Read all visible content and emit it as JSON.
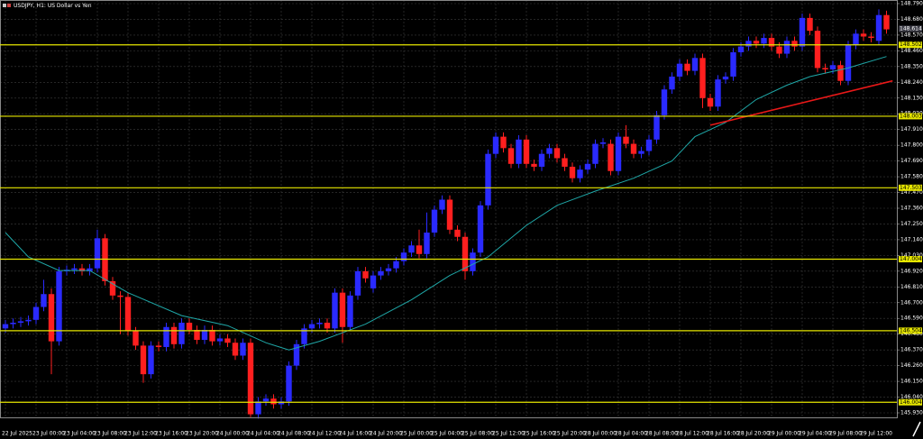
{
  "chart_data": {
    "type": "candlestick",
    "title": "USDJPY, H1: US Dollar vs Yen",
    "categories": [
      "22 Jul 2025",
      null,
      null,
      null,
      "23 Jul 00:00",
      null,
      null,
      null,
      "23 Jul 04:00",
      null,
      null,
      null,
      "23 Jul 08:00",
      null,
      null,
      null,
      "23 Jul 12:00",
      null,
      null,
      null,
      "23 Jul 16:00",
      null,
      null,
      null,
      "23 Jul 20:00",
      null,
      null,
      null,
      "24 Jul 00:00",
      null,
      null,
      null,
      "24 Jul 04:00",
      null,
      null,
      null,
      "24 Jul 08:00",
      null,
      null,
      null,
      "24 Jul 12:00",
      null,
      null,
      null,
      "24 Jul 16:00",
      null,
      null,
      null,
      "24 Jul 20:00",
      null,
      null,
      null,
      "25 Jul 00:00",
      null,
      null,
      null,
      "25 Jul 04:00",
      null,
      null,
      null,
      "25 Jul 08:00",
      null,
      null,
      null,
      "25 Jul 12:00",
      null,
      null,
      null,
      "25 Jul 16:00",
      null,
      null,
      null,
      "25 Jul 20:00",
      null,
      null,
      null,
      "28 Jul 00:00",
      null,
      null,
      null,
      "28 Jul 04:00",
      null,
      null,
      null,
      "28 Jul 08:00",
      null,
      null,
      null,
      "28 Jul 12:00",
      null,
      null,
      null,
      "28 Jul 16:00",
      null,
      null,
      null,
      "28 Jul 20:00",
      null,
      null,
      null,
      "29 Jul 00:00",
      null,
      null,
      null,
      "29 Jul 04:00",
      null,
      null,
      null,
      "29 Jul 08:00",
      null,
      null,
      null,
      "29 Jul 12:00",
      null,
      null,
      null
    ],
    "open": [
      146.52,
      146.55,
      146.56,
      146.57,
      146.58,
      146.67,
      146.76,
      146.43,
      146.92,
      146.93,
      146.94,
      146.92,
      146.94,
      147.15,
      146.85,
      146.75,
      146.74,
      146.5,
      146.4,
      146.2,
      146.4,
      146.39,
      146.53,
      146.41,
      146.56,
      146.51,
      146.44,
      146.51,
      146.43,
      146.45,
      146.42,
      146.33,
      146.42,
      145.92,
      146.01,
      146.03,
      145.99,
      146.01,
      146.26,
      146.41,
      146.52,
      146.55,
      146.56,
      146.52,
      146.77,
      146.53,
      146.75,
      146.92,
      146.8,
      146.89,
      146.92,
      146.94,
      146.99,
      147.05,
      147.1,
      147.04,
      147.19,
      147.35,
      147.42,
      147.21,
      147.16,
      146.92,
      147.05,
      147.38,
      147.74,
      147.86,
      147.78,
      147.67,
      147.84,
      147.67,
      147.65,
      147.74,
      147.78,
      147.71,
      147.65,
      147.57,
      147.63,
      147.67,
      147.81,
      147.81,
      147.62,
      147.86,
      147.81,
      147.74,
      147.76,
      147.84,
      148.01,
      148.19,
      148.28,
      148.37,
      148.32,
      148.41,
      148.13,
      148.07,
      148.26,
      148.28,
      148.45,
      148.49,
      148.53,
      148.51,
      148.55,
      148.49,
      148.44,
      148.53,
      148.49,
      148.69,
      148.6,
      148.34,
      148.33,
      148.36,
      148.25,
      148.5,
      148.58,
      148.56,
      148.53,
      148.71
    ],
    "high": [
      146.58,
      146.59,
      146.6,
      146.61,
      146.7,
      146.86,
      146.8,
      146.95,
      146.96,
      146.97,
      146.97,
      146.97,
      147.21,
      147.18,
      146.88,
      146.78,
      146.77,
      146.53,
      146.43,
      146.43,
      146.43,
      146.56,
      146.56,
      146.59,
      146.59,
      146.54,
      146.54,
      146.54,
      146.48,
      146.48,
      146.45,
      146.45,
      146.45,
      146.04,
      146.06,
      146.06,
      146.04,
      146.29,
      146.44,
      146.55,
      146.58,
      146.59,
      146.59,
      146.8,
      146.8,
      146.78,
      146.95,
      146.95,
      146.92,
      146.95,
      146.97,
      147.02,
      147.08,
      147.13,
      147.21,
      147.33,
      147.38,
      147.45,
      147.45,
      147.24,
      147.19,
      147.08,
      147.41,
      147.77,
      147.89,
      147.89,
      147.81,
      147.87,
      147.87,
      147.7,
      147.77,
      147.81,
      147.81,
      147.74,
      147.68,
      147.66,
      147.7,
      147.84,
      147.85,
      147.84,
      147.89,
      147.94,
      147.84,
      147.79,
      147.87,
      148.04,
      148.22,
      148.31,
      148.4,
      148.4,
      148.44,
      148.44,
      148.16,
      148.29,
      148.31,
      148.48,
      148.52,
      148.56,
      148.56,
      148.58,
      148.58,
      148.52,
      148.56,
      148.56,
      148.72,
      148.72,
      148.63,
      148.37,
      148.39,
      148.39,
      148.53,
      148.61,
      148.61,
      148.59,
      148.75,
      148.74
    ],
    "low": [
      146.49,
      146.52,
      146.53,
      146.54,
      146.55,
      146.64,
      146.2,
      146.4,
      146.89,
      146.9,
      146.89,
      146.89,
      146.91,
      146.82,
      146.72,
      146.48,
      146.47,
      146.37,
      146.14,
      146.17,
      146.36,
      146.36,
      146.38,
      146.38,
      146.48,
      146.41,
      146.41,
      146.4,
      146.4,
      146.39,
      146.3,
      146.3,
      145.9,
      145.89,
      145.98,
      145.96,
      145.96,
      145.98,
      146.23,
      146.38,
      146.49,
      146.52,
      146.49,
      146.49,
      146.42,
      146.5,
      146.72,
      146.84,
      146.77,
      146.86,
      146.89,
      146.91,
      146.96,
      147.02,
      147.01,
      147.01,
      147.16,
      147.32,
      147.18,
      147.13,
      146.86,
      146.89,
      147.02,
      147.35,
      147.71,
      147.75,
      147.64,
      147.64,
      147.64,
      147.62,
      147.62,
      147.71,
      147.68,
      147.62,
      147.54,
      147.54,
      147.6,
      147.64,
      147.78,
      147.59,
      147.59,
      147.78,
      147.71,
      147.71,
      147.73,
      147.81,
      147.98,
      148.16,
      148.25,
      148.29,
      148.29,
      148.06,
      148.04,
      148.04,
      148.23,
      148.25,
      148.42,
      148.46,
      148.48,
      148.48,
      148.46,
      148.41,
      148.41,
      148.46,
      148.46,
      148.57,
      148.31,
      148.3,
      148.3,
      148.22,
      148.22,
      148.47,
      148.53,
      148.52,
      148.5,
      148.58
    ],
    "close": [
      146.55,
      146.56,
      146.57,
      146.58,
      146.67,
      146.76,
      146.43,
      146.92,
      146.93,
      146.94,
      146.92,
      146.94,
      147.15,
      146.85,
      146.75,
      146.74,
      146.5,
      146.4,
      146.2,
      146.4,
      146.39,
      146.53,
      146.41,
      146.56,
      146.51,
      146.44,
      146.51,
      146.43,
      146.45,
      146.42,
      146.33,
      146.42,
      145.92,
      146.01,
      146.03,
      145.99,
      146.01,
      146.26,
      146.41,
      146.52,
      146.55,
      146.56,
      146.52,
      146.77,
      146.53,
      146.75,
      146.92,
      146.87,
      146.89,
      146.92,
      146.94,
      146.99,
      147.05,
      147.1,
      147.04,
      147.19,
      147.35,
      147.42,
      147.21,
      147.16,
      146.92,
      147.05,
      147.38,
      147.74,
      147.86,
      147.78,
      147.67,
      147.84,
      147.67,
      147.65,
      147.74,
      147.78,
      147.71,
      147.65,
      147.57,
      147.63,
      147.67,
      147.81,
      147.82,
      147.62,
      147.86,
      147.81,
      147.74,
      147.76,
      147.84,
      148.01,
      148.19,
      148.28,
      148.37,
      148.32,
      148.41,
      148.13,
      148.07,
      148.26,
      148.28,
      148.45,
      148.49,
      148.53,
      148.51,
      148.55,
      148.49,
      148.44,
      148.53,
      148.49,
      148.69,
      148.6,
      148.34,
      148.33,
      148.36,
      148.25,
      148.5,
      148.58,
      148.56,
      148.55,
      148.71,
      148.61
    ],
    "up_color": "#2a2aff",
    "down_color": "#ff1f1f",
    "ma": {
      "color": "#1fa8a8",
      "x": [
        0,
        3,
        7,
        11,
        16,
        23,
        29,
        34,
        37,
        41,
        47,
        53,
        58,
        63,
        68,
        72,
        77,
        82,
        87,
        90,
        94,
        98,
        102,
        105,
        110,
        115
      ],
      "values": [
        147.19,
        147.02,
        146.925,
        146.925,
        146.77,
        146.61,
        146.54,
        146.42,
        146.37,
        146.43,
        146.55,
        146.72,
        146.89,
        147.02,
        147.24,
        147.38,
        147.48,
        147.57,
        147.69,
        147.86,
        147.96,
        148.12,
        148.22,
        148.28,
        148.34,
        148.42
      ]
    },
    "trendline": {
      "color": "#e81818",
      "x": [
        92,
        115.8
      ],
      "values": [
        147.94,
        148.25
      ]
    },
    "levels": [
      148.502,
      148.003,
      147.503,
      147.004,
      146.504,
      146.004
    ],
    "level_color": "#e6e600",
    "last_price": 148.614,
    "ylim": [
      145.93,
      148.79
    ],
    "yticks": [
      {
        "value": 148.79,
        "label": "148.790"
      },
      {
        "value": 148.68,
        "label": "148.680"
      },
      {
        "value": 148.57,
        "label": "148.570"
      },
      {
        "value": 148.46,
        "label": "148.460"
      },
      {
        "value": 148.35,
        "label": "148.350"
      },
      {
        "value": 148.24,
        "label": "148.240"
      },
      {
        "value": 148.13,
        "label": "148.130"
      },
      {
        "value": 148.02,
        "label": "148.020"
      },
      {
        "value": 147.91,
        "label": "147.910"
      },
      {
        "value": 147.8,
        "label": "147.800"
      },
      {
        "value": 147.69,
        "label": "147.690"
      },
      {
        "value": 147.58,
        "label": "147.580"
      },
      {
        "value": 147.47,
        "label": "147.470"
      },
      {
        "value": 147.36,
        "label": "147.360"
      },
      {
        "value": 147.25,
        "label": "147.250"
      },
      {
        "value": 147.14,
        "label": "147.140"
      },
      {
        "value": 147.03,
        "label": "147.030"
      },
      {
        "value": 146.92,
        "label": "146.920"
      },
      {
        "value": 146.81,
        "label": "146.810"
      },
      {
        "value": 146.7,
        "label": "146.700"
      },
      {
        "value": 146.59,
        "label": "146.590"
      },
      {
        "value": 146.48,
        "label": "146.480"
      },
      {
        "value": 146.37,
        "label": "146.370"
      },
      {
        "value": 146.26,
        "label": "146.260"
      },
      {
        "value": 146.15,
        "label": "146.150"
      },
      {
        "value": 146.04,
        "label": "146.040"
      },
      {
        "value": 145.93,
        "label": "145.930"
      }
    ],
    "grid": true
  }
}
